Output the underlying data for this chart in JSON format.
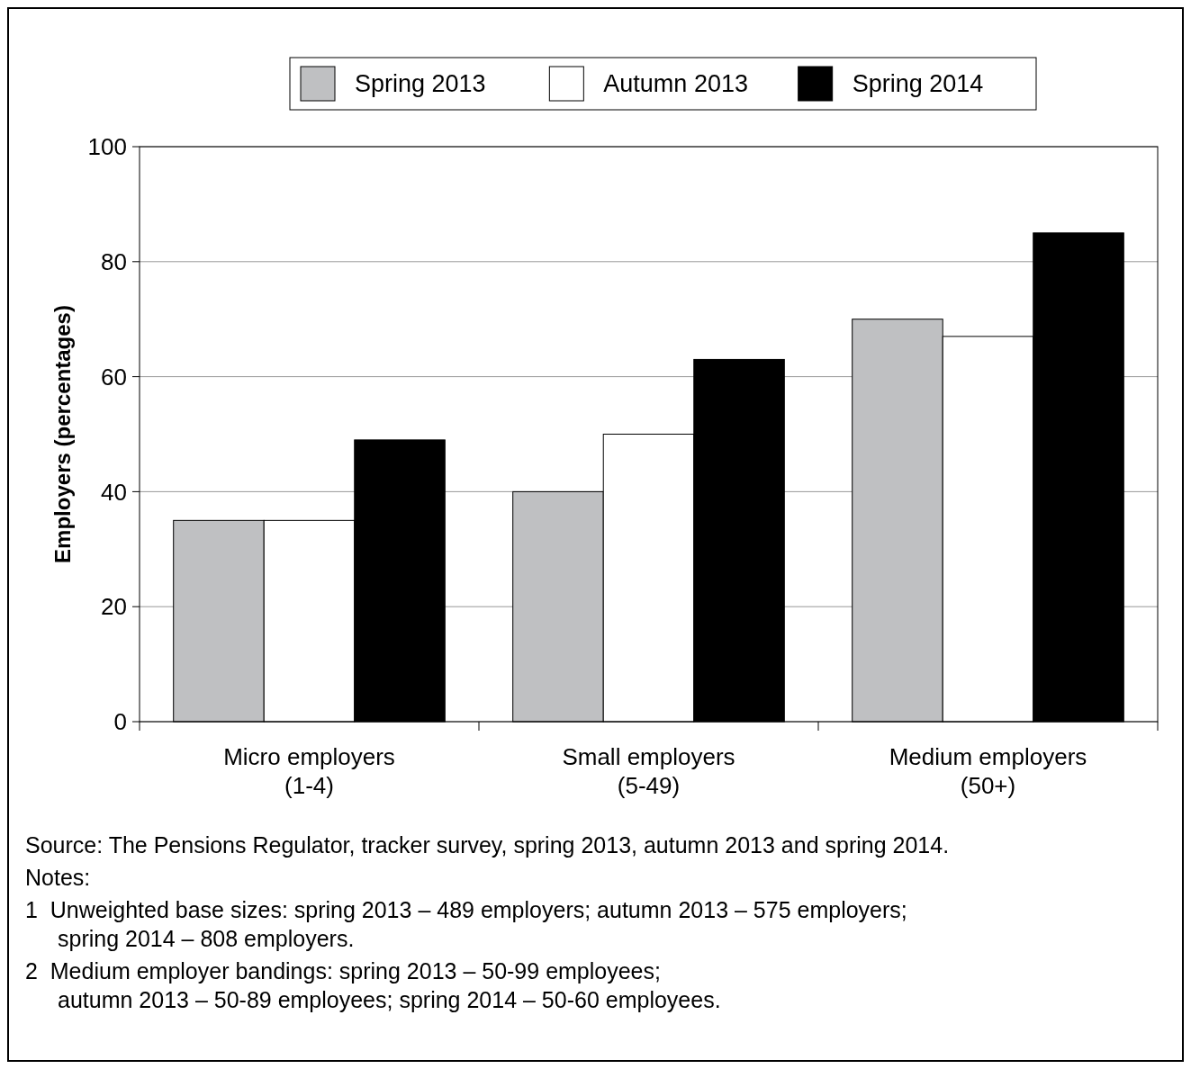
{
  "chart_data": {
    "type": "bar",
    "ylabel": "Employers (percentages)",
    "categories": [
      "Micro employers\n(1-4)",
      "Small employers\n(5-49)",
      "Medium employers\n(50+)"
    ],
    "series": [
      {
        "name": "Spring 2013",
        "color": "#bfc0c2",
        "values": [
          35,
          40,
          70
        ]
      },
      {
        "name": "Autumn 2013",
        "color": "#ffffff",
        "values": [
          35,
          50,
          67
        ]
      },
      {
        "name": "Spring 2014",
        "color": "#000000",
        "values": [
          49,
          63,
          85
        ]
      }
    ],
    "ylim": [
      0,
      100
    ],
    "yticks": [
      0,
      20,
      40,
      60,
      80,
      100
    ],
    "grid": "y",
    "legend": "top",
    "annotations": [
      "Source: The Pensions Regulator, tracker survey, spring 2013, autumn 2013 and spring 2014.",
      "Notes:",
      "1  Unweighted base sizes: spring 2013 – 489 employers; autumn 2013 – 575 employers;\nspring 2014 – 808 employers.",
      "2  Medium employer bandings: spring 2013 – 50-99 employees;\nautumn 2013 – 50-89 employees; spring 2014 – 50-60 employees."
    ]
  }
}
